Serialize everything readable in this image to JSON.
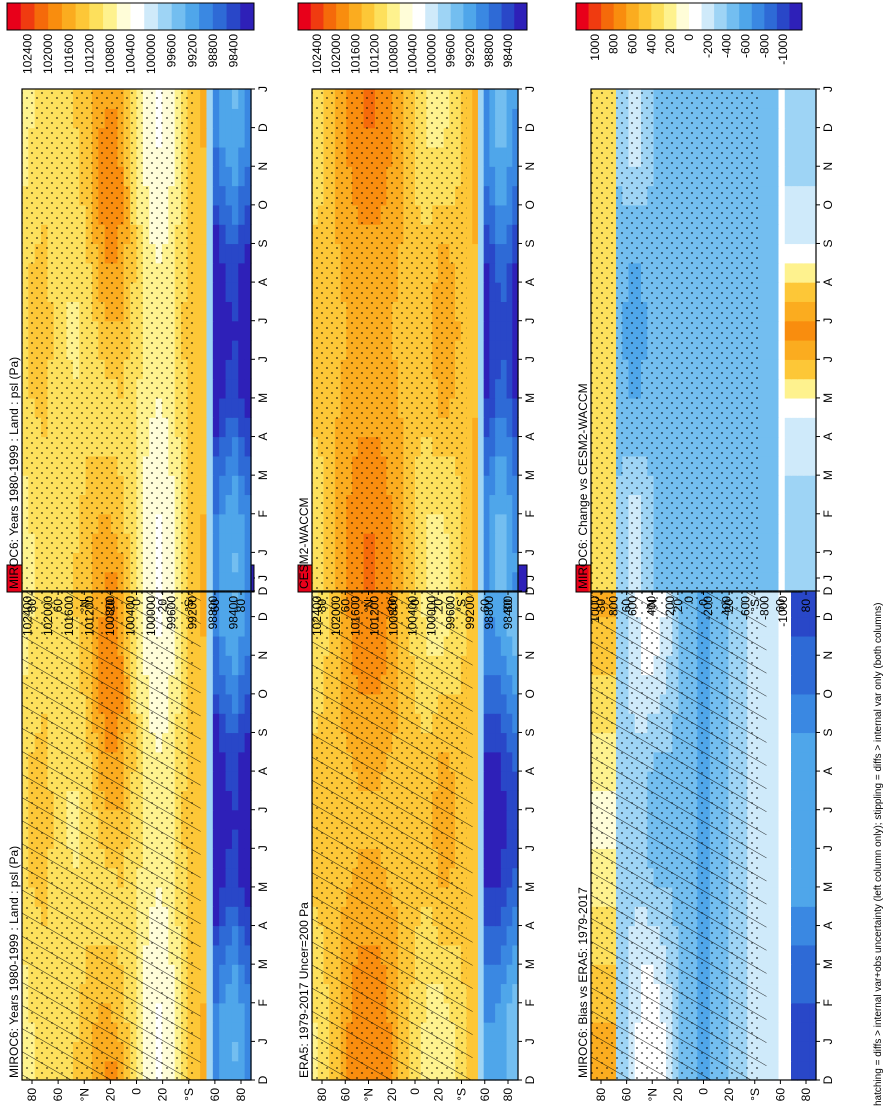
{
  "figure": {
    "footnote": "hatching = diffs > internal var+obs uncertainty (left column only); stippling = diffs > internal var only (both columns)"
  },
  "palettes": {
    "psl": [
      "#e8001a",
      "#f03b10",
      "#f56a0a",
      "#f98d0e",
      "#fbac1f",
      "#fdc737",
      "#fde05c",
      "#fef28e",
      "#fffdd8",
      "#ffffff",
      "#cfeafa",
      "#9ed4f5",
      "#73bef0",
      "#4fa6ea",
      "#3a88e2",
      "#2e6ad6",
      "#2947c8",
      "#2e20b8"
    ],
    "diff": [
      "#e8001a",
      "#f03b10",
      "#f56a0a",
      "#f98d0e",
      "#fbac1f",
      "#fdc737",
      "#fde05c",
      "#fef28e",
      "#fffdd8",
      "#ffffff",
      "#cfeafa",
      "#9ed4f5",
      "#73bef0",
      "#4fa6ea",
      "#3a88e2",
      "#2e6ad6",
      "#2947c8",
      "#2e20b8"
    ]
  },
  "chart_data": [
    {
      "id": "p1",
      "type": "heatmap",
      "title": "MIROC6: Years 1980-1999 : Land : psl (Pa)",
      "x_labels": [
        "D",
        "J",
        "F",
        "M",
        "A",
        "M",
        "J",
        "J",
        "A",
        "S",
        "O",
        "N",
        "D",
        "J"
      ],
      "y_ticks": [
        "80",
        "60",
        "°N",
        "20",
        "0",
        "20",
        "°S",
        "60",
        "80"
      ],
      "colorbar_labels": [
        "102400",
        "102000",
        "101600",
        "101200",
        "100800",
        "100400",
        "100000",
        "99600",
        "99200",
        "98800",
        "98400"
      ],
      "palette": "psl",
      "field": "psl_model",
      "ylim": [
        -90,
        90
      ],
      "hatching": true,
      "stippling": true
    },
    {
      "id": "p2",
      "type": "heatmap",
      "title": "MIROC6: Years 1980-1999 : Land : psl (Pa)",
      "x_labels": [
        "D",
        "J",
        "F",
        "M",
        "A",
        "M",
        "J",
        "J",
        "A",
        "S",
        "O",
        "N",
        "D",
        "J"
      ],
      "y_ticks": [
        "80",
        "60",
        "°N",
        "20",
        "0",
        "20",
        "°S",
        "60",
        "80"
      ],
      "colorbar_labels": [
        "102400",
        "102000",
        "101600",
        "101200",
        "100800",
        "100400",
        "100000",
        "99600",
        "99200",
        "98800",
        "98400"
      ],
      "palette": "psl",
      "field": "psl_model",
      "ylim": [
        -90,
        90
      ],
      "hatching": false,
      "stippling": true
    },
    {
      "id": "p3",
      "type": "heatmap",
      "title": "ERA5: 1979-2017 Uncer=200 Pa",
      "x_labels": [
        "D",
        "J",
        "F",
        "M",
        "A",
        "M",
        "J",
        "J",
        "A",
        "S",
        "O",
        "N",
        "D",
        "J"
      ],
      "y_ticks": [
        "80",
        "60",
        "°N",
        "20",
        "0",
        "20",
        "°S",
        "60",
        "80"
      ],
      "colorbar_labels": [
        "102400",
        "102000",
        "101600",
        "101200",
        "100800",
        "100400",
        "100000",
        "99600",
        "99200",
        "98800",
        "98400"
      ],
      "palette": "psl",
      "field": "psl_obs",
      "ylim": [
        -90,
        90
      ],
      "hatching": true,
      "stippling": true
    },
    {
      "id": "p4",
      "type": "heatmap",
      "title": "CESM2-WACCM",
      "x_labels": [
        "D",
        "J",
        "F",
        "M",
        "A",
        "M",
        "J",
        "J",
        "A",
        "S",
        "O",
        "N",
        "D",
        "J"
      ],
      "y_ticks": [
        "80",
        "60",
        "°N",
        "20",
        "0",
        "20",
        "°S",
        "60",
        "80"
      ],
      "colorbar_labels": [
        "102400",
        "102000",
        "101600",
        "101200",
        "100800",
        "100400",
        "100000",
        "99600",
        "99200",
        "98800",
        "98400"
      ],
      "palette": "psl",
      "field": "psl_ref",
      "ylim": [
        -90,
        90
      ],
      "hatching": false,
      "stippling": true
    },
    {
      "id": "p5",
      "type": "heatmap",
      "title": "MIROC6: Bias vs ERA5: 1979-2017",
      "x_labels": [
        "D",
        "J",
        "F",
        "M",
        "A",
        "M",
        "J",
        "J",
        "A",
        "S",
        "O",
        "N",
        "D",
        "J"
      ],
      "y_ticks": [
        "80",
        "60",
        "°N",
        "20",
        "0",
        "20",
        "°S",
        "60",
        "80"
      ],
      "colorbar_labels": [
        "1000",
        "800",
        "600",
        "400",
        "200",
        "0",
        "-200",
        "-400",
        "-600",
        "-800",
        "-1000"
      ],
      "palette": "diff",
      "field": "bias",
      "ylim": [
        -90,
        90
      ],
      "hatching": true,
      "stippling": true
    },
    {
      "id": "p6",
      "type": "heatmap",
      "title": "MIROC6: Change vs CESM2-WACCM",
      "x_labels": [
        "D",
        "J",
        "F",
        "M",
        "A",
        "M",
        "J",
        "J",
        "A",
        "S",
        "O",
        "N",
        "D",
        "J"
      ],
      "y_ticks": [
        "80",
        "60",
        "°N",
        "20",
        "0",
        "20",
        "°S",
        "60",
        "80"
      ],
      "colorbar_labels": [
        "1000",
        "800",
        "600",
        "400",
        "200",
        "0",
        "-200",
        "-400",
        "-600",
        "-800",
        "-1000"
      ],
      "palette": "diff",
      "field": "change",
      "ylim": [
        -90,
        90
      ],
      "hatching": false,
      "stippling": true
    }
  ]
}
